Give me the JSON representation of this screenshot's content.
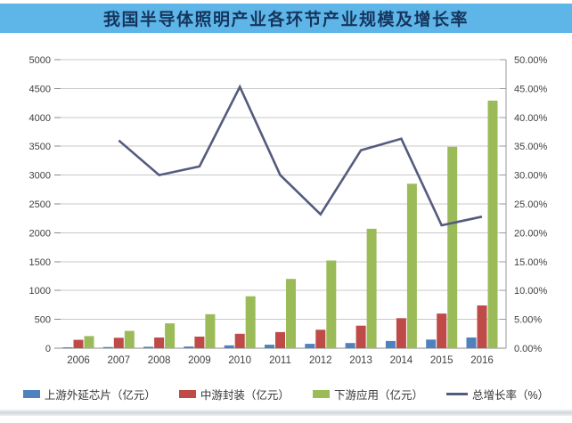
{
  "title": "我国半导体照明产业各环节产业规模及增长率",
  "title_band_color": "#5db6e7",
  "title_text_color": "#16355e",
  "chart_data": {
    "type": "bar",
    "subtype": "grouped-bars-with-line-overlay",
    "title": "我国半导体照明产业各环节产业规模及增长率",
    "categories": [
      "2006",
      "2007",
      "2008",
      "2009",
      "2010",
      "2011",
      "2012",
      "2013",
      "2014",
      "2015",
      "2016"
    ],
    "series": [
      {
        "name": "上游外延芯片（亿元）",
        "type": "bar",
        "axis": "left",
        "color": "#4e81bd",
        "values": [
          15,
          20,
          25,
          30,
          50,
          60,
          75,
          90,
          125,
          150,
          185
        ]
      },
      {
        "name": "中游封装（亿元）",
        "type": "bar",
        "axis": "left",
        "color": "#be4b48",
        "values": [
          145,
          180,
          185,
          200,
          250,
          280,
          320,
          390,
          520,
          600,
          740
        ]
      },
      {
        "name": "下游应用（亿元）",
        "type": "bar",
        "axis": "left",
        "color": "#9bbb59",
        "values": [
          210,
          300,
          430,
          590,
          900,
          1200,
          1520,
          2070,
          2850,
          3490,
          4290
        ]
      },
      {
        "name": "总增长率（%）",
        "type": "line",
        "axis": "right",
        "color": "#555b7e",
        "values": [
          null,
          36,
          30,
          31.5,
          45.3,
          30,
          23.2,
          34.3,
          36.3,
          21.3,
          22.8
        ]
      }
    ],
    "left_axis": {
      "min": 0,
      "max": 5000,
      "step": 500,
      "tick_labels": [
        "0",
        "500",
        "1000",
        "1500",
        "2000",
        "2500",
        "3000",
        "3500",
        "4000",
        "4500",
        "5000"
      ]
    },
    "right_axis": {
      "min": 0,
      "max": 50,
      "step": 5,
      "tick_labels": [
        "0.00%",
        "5.00%",
        "10.00%",
        "15.00%",
        "20.00%",
        "25.00%",
        "30.00%",
        "35.00%",
        "40.00%",
        "45.00%",
        "50.00%"
      ]
    },
    "grid": "horizontal",
    "legend_position": "bottom",
    "axis_label_color": "#404040",
    "gridline_color": "#c8c8c8",
    "baseline_color": "#8a8a8a",
    "right_axisline_color": "#9a9a9a"
  },
  "legend": {
    "items": [
      {
        "label": "上游外延芯片（亿元）",
        "swatch": "bar"
      },
      {
        "label": "中游封装（亿元）",
        "swatch": "bar"
      },
      {
        "label": "下游应用（亿元）",
        "swatch": "bar"
      },
      {
        "label": "总增长率（%）",
        "swatch": "line"
      }
    ]
  }
}
